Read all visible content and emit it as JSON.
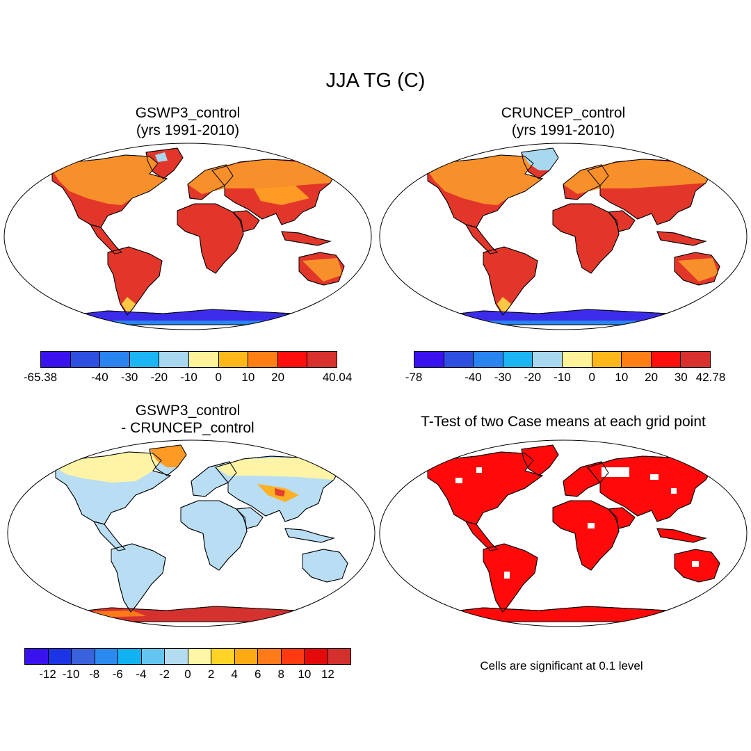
{
  "title": "JJA TG (C)",
  "panels": {
    "top_left": {
      "title_line1": "GSWP3_control",
      "title_line2": "(yrs 1991-2010)"
    },
    "top_right": {
      "title_line1": "CRUNCEP_control",
      "title_line2": "(yrs 1991-2010)"
    },
    "bottom_left": {
      "title_line1": "GSWP3_control",
      "title_line2": "- CRUNCEP_control"
    },
    "bottom_right": {
      "title_line1": "T-Test of two Case means at each grid point",
      "note": "Cells are significant at 0.1 level"
    }
  },
  "colorbars": {
    "top_left": {
      "colors": [
        "#3a12f0",
        "#2f4fe0",
        "#2a84f0",
        "#1ab5f2",
        "#a8d7f0",
        "#fff39a",
        "#ffb81a",
        "#ff7f14",
        "#ff0e0e",
        "#d8302c"
      ],
      "labels": [
        "-65.38",
        "-40",
        "-30",
        "-20",
        "-10",
        "0",
        "10",
        "20",
        "40.04"
      ]
    },
    "top_right": {
      "colors": [
        "#3a12f0",
        "#2f4fe0",
        "#2a84f0",
        "#1ab5f2",
        "#a8d7f0",
        "#fff39a",
        "#ffb81a",
        "#ff7f14",
        "#ff0e0e",
        "#d8302c"
      ],
      "labels": [
        "-78",
        "-40",
        "-30",
        "-20",
        "-10",
        "0",
        "10",
        "20",
        "30",
        "42.78"
      ]
    },
    "bottom_left": {
      "colors": [
        "#3a12f0",
        "#1a34e6",
        "#3a62dc",
        "#2a8af0",
        "#12b2f2",
        "#64c6f0",
        "#b3dcf0",
        "#fff7a8",
        "#ffd427",
        "#ffaa12",
        "#ff7a18",
        "#ff3a12",
        "#e40a0a",
        "#d3302e"
      ],
      "labels": [
        "-12",
        "-10",
        "-8",
        "-6",
        "-4",
        "-2",
        "0",
        "2",
        "4",
        "6",
        "8",
        "10",
        "12"
      ]
    }
  }
}
